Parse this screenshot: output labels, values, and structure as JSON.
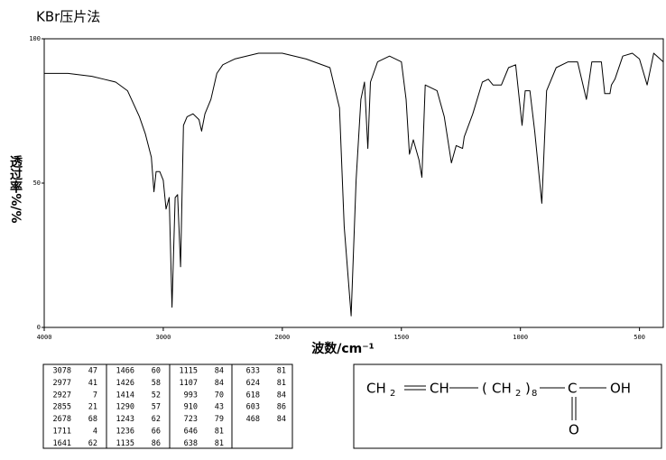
{
  "chart_data": {
    "type": "line",
    "title": "KBr压片法",
    "xlabel": "波数/cm⁻¹",
    "ylabel": "透过率%/%",
    "xlim": [
      4000,
      400
    ],
    "xticks": [
      4000,
      3000,
      2000,
      1500,
      1000,
      500
    ],
    "ylim": [
      0,
      100
    ],
    "yticks": [
      0,
      50,
      100
    ],
    "series": [
      {
        "color": "#000000",
        "x": [
          4000,
          3800,
          3600,
          3500,
          3400,
          3300,
          3200,
          3150,
          3100,
          3078,
          3060,
          3030,
          3000,
          2977,
          2950,
          2927,
          2900,
          2880,
          2855,
          2830,
          2800,
          2750,
          2700,
          2678,
          2650,
          2600,
          2550,
          2500,
          2400,
          2200,
          2000,
          1900,
          1800,
          1760,
          1740,
          1711,
          1690,
          1670,
          1655,
          1641,
          1630,
          1600,
          1550,
          1500,
          1480,
          1466,
          1450,
          1426,
          1414,
          1400,
          1350,
          1320,
          1290,
          1270,
          1243,
          1236,
          1200,
          1160,
          1135,
          1115,
          1107,
          1080,
          1050,
          1020,
          993,
          980,
          960,
          940,
          910,
          890,
          850,
          800,
          760,
          723,
          700,
          660,
          646,
          638,
          633,
          624,
          618,
          603,
          570,
          530,
          500,
          468,
          440,
          400
        ],
        "values": [
          88,
          88,
          87,
          86,
          85,
          82,
          73,
          67,
          59,
          47,
          54,
          54,
          51,
          41,
          45,
          7,
          45,
          46,
          21,
          70,
          73,
          74,
          72,
          68,
          74,
          79,
          88,
          91,
          93,
          95,
          95,
          93,
          90,
          76,
          35,
          4,
          51,
          79,
          85,
          62,
          85,
          92,
          94,
          92,
          79,
          60,
          65,
          58,
          52,
          84,
          82,
          73,
          57,
          63,
          62,
          66,
          74,
          85,
          86,
          84,
          84,
          84,
          90,
          91,
          70,
          82,
          82,
          68,
          43,
          82,
          90,
          92,
          92,
          79,
          92,
          92,
          81,
          81,
          81,
          81,
          84,
          86,
          94,
          95,
          93,
          84,
          95,
          92
        ]
      }
    ]
  },
  "peak_table": [
    [
      [
        3078,
        47
      ],
      [
        2977,
        41
      ],
      [
        2927,
        7
      ],
      [
        2855,
        21
      ],
      [
        2678,
        68
      ],
      [
        1711,
        4
      ],
      [
        1641,
        62
      ]
    ],
    [
      [
        1466,
        60
      ],
      [
        1426,
        58
      ],
      [
        1414,
        52
      ],
      [
        1290,
        57
      ],
      [
        1243,
        62
      ],
      [
        1236,
        66
      ],
      [
        1135,
        86
      ]
    ],
    [
      [
        1115,
        84
      ],
      [
        1107,
        84
      ],
      [
        993,
        70
      ],
      [
        910,
        43
      ],
      [
        723,
        79
      ],
      [
        646,
        81
      ],
      [
        638,
        81
      ]
    ],
    [
      [
        633,
        81
      ],
      [
        624,
        81
      ],
      [
        618,
        84
      ],
      [
        603,
        86
      ],
      [
        468,
        84
      ]
    ]
  ],
  "structure": {
    "ch_a": "CH",
    "sub_a": "2",
    "ch_b": "CH",
    "open": "(",
    "ch_c": "CH",
    "sub_c": "2",
    "close": ")",
    "repeat": "8",
    "carbon": "C",
    "hydroxyl": "OH",
    "oxygen": "O"
  }
}
